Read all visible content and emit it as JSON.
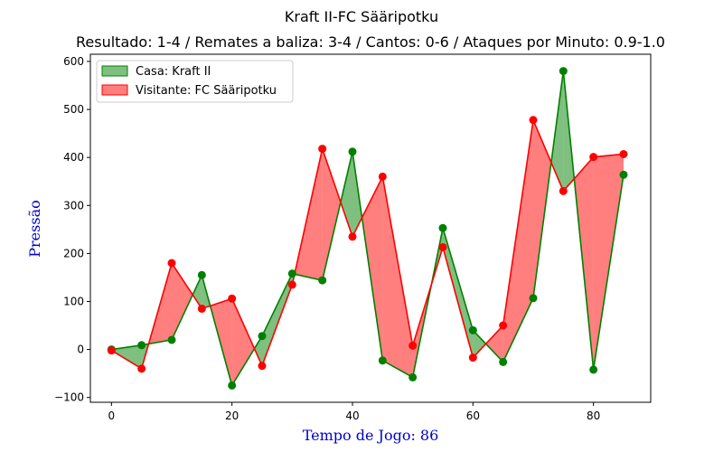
{
  "chart_data": {
    "type": "area",
    "title": "Kraft II-FC Sääripotku",
    "subtitle": "Resultado: 1-4 / Remates a baliza: 3-4 / Cantos: 0-6 / Ataques por Minuto: 0.9-1.0",
    "xlabel": "Tempo de Jogo: 86",
    "ylabel": "Pressão",
    "xlim": [
      -3.5,
      89.5
    ],
    "ylim": [
      -110,
      615
    ],
    "xticks": [
      0,
      20,
      40,
      60,
      80
    ],
    "yticks": [
      -100,
      0,
      100,
      200,
      300,
      400,
      500,
      600
    ],
    "legend_position": "top-left",
    "grid": false,
    "x": [
      0,
      5,
      10,
      15,
      20,
      25,
      30,
      35,
      40,
      45,
      50,
      55,
      60,
      65,
      70,
      75,
      80,
      85
    ],
    "series": [
      {
        "name": "Casa: Kraft II",
        "line_color": "#008000",
        "fill_color": "#008000",
        "values": [
          0,
          9,
          20,
          155,
          -75,
          28,
          158,
          144,
          412,
          -23,
          -58,
          253,
          40,
          -26,
          107,
          580,
          -42,
          364
        ]
      },
      {
        "name": "Visitante: FC Sääripotku",
        "line_color": "#ff0000",
        "fill_color": "#ff0000",
        "values": [
          -2,
          -40,
          180,
          85,
          106,
          -34,
          135,
          418,
          235,
          360,
          8,
          213,
          -17,
          50,
          478,
          330,
          401,
          407
        ]
      }
    ]
  }
}
